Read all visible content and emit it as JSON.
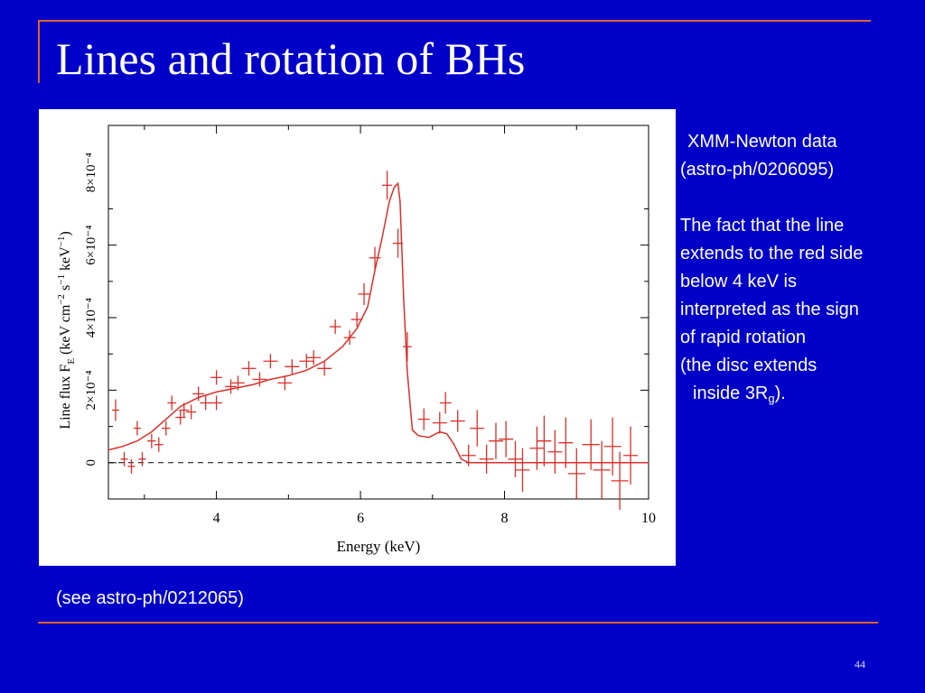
{
  "slide": {
    "title": "Lines and rotation of BHs",
    "source_line": "XMM-Newton data",
    "ref_line": "(astro-ph/0206095)",
    "explanation": [
      "The fact that the line",
      "extends to the red side",
      "below 4 keV is",
      "interpreted as the sign",
      "of rapid rotation",
      "(the disc extends"
    ],
    "last_line_prefix": "inside 3R",
    "last_line_sub": "g",
    "last_line_suffix": ").",
    "see_also": "(see astro-ph/0212065)",
    "page_number": "44",
    "colors": {
      "background": "#0000c8",
      "accent": "#e0622a",
      "text": "#ffffff",
      "data": "#d9302a"
    }
  },
  "chart_data": {
    "type": "scatter",
    "xlabel": "Energy (keV)",
    "ylabel": "Line flux F_E (keV cm^-2 s^-1 keV^-1)",
    "xlim": [
      2.5,
      10
    ],
    "ylim": [
      -0.0001,
      0.00093
    ],
    "x_ticks": [
      4,
      6,
      8,
      10
    ],
    "y_ticks": [
      {
        "value": 0,
        "label": "0"
      },
      {
        "value": 0.0002,
        "label": "2×10⁻⁴"
      },
      {
        "value": 0.0004,
        "label": "4×10⁻⁴"
      },
      {
        "value": 0.0006,
        "label": "6×10⁻⁴"
      },
      {
        "value": 0.0008,
        "label": "8×10⁻⁴"
      }
    ],
    "zero_line": true,
    "points": [
      {
        "x": 2.6,
        "y": 0.000145,
        "xerr": 0.05,
        "yerr": 3e-05
      },
      {
        "x": 2.72,
        "y": 1e-05,
        "xerr": 0.05,
        "yerr": 2e-05
      },
      {
        "x": 2.82,
        "y": -1e-05,
        "xerr": 0.05,
        "yerr": 2e-05
      },
      {
        "x": 2.9,
        "y": 9.5e-05,
        "xerr": 0.05,
        "yerr": 2e-05
      },
      {
        "x": 2.97,
        "y": 1e-05,
        "xerr": 0.05,
        "yerr": 2e-05
      },
      {
        "x": 3.1,
        "y": 6e-05,
        "xerr": 0.06,
        "yerr": 2e-05
      },
      {
        "x": 3.2,
        "y": 5e-05,
        "xerr": 0.06,
        "yerr": 2e-05
      },
      {
        "x": 3.3,
        "y": 9.5e-05,
        "xerr": 0.06,
        "yerr": 2e-05
      },
      {
        "x": 3.38,
        "y": 0.000165,
        "xerr": 0.06,
        "yerr": 2e-05
      },
      {
        "x": 3.5,
        "y": 0.000125,
        "xerr": 0.07,
        "yerr": 2e-05
      },
      {
        "x": 3.55,
        "y": 0.000145,
        "xerr": 0.07,
        "yerr": 2e-05
      },
      {
        "x": 3.65,
        "y": 0.00014,
        "xerr": 0.07,
        "yerr": 2e-05
      },
      {
        "x": 3.75,
        "y": 0.00019,
        "xerr": 0.08,
        "yerr": 2e-05
      },
      {
        "x": 3.85,
        "y": 0.000165,
        "xerr": 0.08,
        "yerr": 2e-05
      },
      {
        "x": 4.0,
        "y": 0.000235,
        "xerr": 0.08,
        "yerr": 2e-05
      },
      {
        "x": 4.0,
        "y": 0.000165,
        "xerr": 0.08,
        "yerr": 2e-05
      },
      {
        "x": 4.2,
        "y": 0.00021,
        "xerr": 0.08,
        "yerr": 2e-05
      },
      {
        "x": 4.3,
        "y": 0.00022,
        "xerr": 0.09,
        "yerr": 2e-05
      },
      {
        "x": 4.45,
        "y": 0.00026,
        "xerr": 0.1,
        "yerr": 2e-05
      },
      {
        "x": 4.6,
        "y": 0.00023,
        "xerr": 0.1,
        "yerr": 2e-05
      },
      {
        "x": 4.75,
        "y": 0.00028,
        "xerr": 0.1,
        "yerr": 2e-05
      },
      {
        "x": 4.95,
        "y": 0.00022,
        "xerr": 0.1,
        "yerr": 2e-05
      },
      {
        "x": 5.05,
        "y": 0.000265,
        "xerr": 0.1,
        "yerr": 2e-05
      },
      {
        "x": 5.25,
        "y": 0.00028,
        "xerr": 0.1,
        "yerr": 2e-05
      },
      {
        "x": 5.35,
        "y": 0.00029,
        "xerr": 0.1,
        "yerr": 2e-05
      },
      {
        "x": 5.5,
        "y": 0.00026,
        "xerr": 0.1,
        "yerr": 2e-05
      },
      {
        "x": 5.65,
        "y": 0.000375,
        "xerr": 0.08,
        "yerr": 2e-05
      },
      {
        "x": 5.85,
        "y": 0.000345,
        "xerr": 0.08,
        "yerr": 2e-05
      },
      {
        "x": 5.95,
        "y": 0.000395,
        "xerr": 0.08,
        "yerr": 2e-05
      },
      {
        "x": 6.05,
        "y": 0.000465,
        "xerr": 0.08,
        "yerr": 3e-05
      },
      {
        "x": 6.2,
        "y": 0.000565,
        "xerr": 0.08,
        "yerr": 3e-05
      },
      {
        "x": 6.37,
        "y": 0.000765,
        "xerr": 0.07,
        "yerr": 4e-05
      },
      {
        "x": 6.52,
        "y": 0.000605,
        "xerr": 0.07,
        "yerr": 4e-05
      },
      {
        "x": 6.65,
        "y": 0.00032,
        "xerr": 0.06,
        "yerr": 4e-05
      },
      {
        "x": 6.88,
        "y": 0.00012,
        "xerr": 0.08,
        "yerr": 3e-05
      },
      {
        "x": 7.1,
        "y": 0.00011,
        "xerr": 0.1,
        "yerr": 3e-05
      },
      {
        "x": 7.18,
        "y": 0.000165,
        "xerr": 0.08,
        "yerr": 3e-05
      },
      {
        "x": 7.35,
        "y": 0.000115,
        "xerr": 0.1,
        "yerr": 3e-05
      },
      {
        "x": 7.5,
        "y": 2e-05,
        "xerr": 0.1,
        "yerr": 3e-05
      },
      {
        "x": 7.62,
        "y": 9.5e-05,
        "xerr": 0.1,
        "yerr": 5e-05
      },
      {
        "x": 7.75,
        "y": 1e-05,
        "xerr": 0.1,
        "yerr": 4e-05
      },
      {
        "x": 7.88,
        "y": 6e-05,
        "xerr": 0.1,
        "yerr": 5e-05
      },
      {
        "x": 8.02,
        "y": 6.5e-05,
        "xerr": 0.1,
        "yerr": 5e-05
      },
      {
        "x": 8.15,
        "y": 1e-05,
        "xerr": 0.1,
        "yerr": 5e-05
      },
      {
        "x": 8.25,
        "y": -2e-05,
        "xerr": 0.1,
        "yerr": 6e-05
      },
      {
        "x": 8.45,
        "y": 4e-05,
        "xerr": 0.1,
        "yerr": 6e-05
      },
      {
        "x": 8.55,
        "y": 6e-05,
        "xerr": 0.1,
        "yerr": 7e-05
      },
      {
        "x": 8.7,
        "y": 3e-05,
        "xerr": 0.1,
        "yerr": 6e-05
      },
      {
        "x": 8.85,
        "y": 5.5e-05,
        "xerr": 0.1,
        "yerr": 7e-05
      },
      {
        "x": 9.0,
        "y": -3e-05,
        "xerr": 0.12,
        "yerr": 7e-05
      },
      {
        "x": 9.2,
        "y": 5e-05,
        "xerr": 0.12,
        "yerr": 7e-05
      },
      {
        "x": 9.35,
        "y": -2e-05,
        "xerr": 0.12,
        "yerr": 8e-05
      },
      {
        "x": 9.5,
        "y": 4.5e-05,
        "xerr": 0.12,
        "yerr": 8e-05
      },
      {
        "x": 9.6,
        "y": -5e-05,
        "xerr": 0.12,
        "yerr": 8e-05
      },
      {
        "x": 9.75,
        "y": 2e-05,
        "xerr": 0.1,
        "yerr": 8e-05
      }
    ],
    "model_curve": [
      [
        2.5,
        3.5e-05
      ],
      [
        2.7,
        4.5e-05
      ],
      [
        2.9,
        6e-05
      ],
      [
        3.1,
        8.5e-05
      ],
      [
        3.3,
        0.00012
      ],
      [
        3.5,
        0.000155
      ],
      [
        3.75,
        0.00018
      ],
      [
        4.0,
        0.000195
      ],
      [
        4.25,
        0.000205
      ],
      [
        4.5,
        0.000215
      ],
      [
        4.75,
        0.00023
      ],
      [
        5.0,
        0.00024
      ],
      [
        5.25,
        0.000255
      ],
      [
        5.5,
        0.00028
      ],
      [
        5.75,
        0.00032
      ],
      [
        5.95,
        0.00037
      ],
      [
        6.1,
        0.00043
      ],
      [
        6.2,
        0.00053
      ],
      [
        6.3,
        0.00062
      ],
      [
        6.4,
        0.00072
      ],
      [
        6.47,
        0.00076
      ],
      [
        6.52,
        0.00077
      ],
      [
        6.55,
        0.00072
      ],
      [
        6.6,
        0.00045
      ],
      [
        6.65,
        0.00025
      ],
      [
        6.72,
        9e-05
      ],
      [
        6.8,
        7.5e-05
      ],
      [
        6.95,
        7e-05
      ],
      [
        7.1,
        8.5e-05
      ],
      [
        7.2,
        8e-05
      ],
      [
        7.3,
        5e-05
      ],
      [
        7.4,
        1e-05
      ],
      [
        7.5,
        0.0
      ],
      [
        8.0,
        0.0
      ],
      [
        9.0,
        0.0
      ],
      [
        10.0,
        0.0
      ]
    ]
  }
}
